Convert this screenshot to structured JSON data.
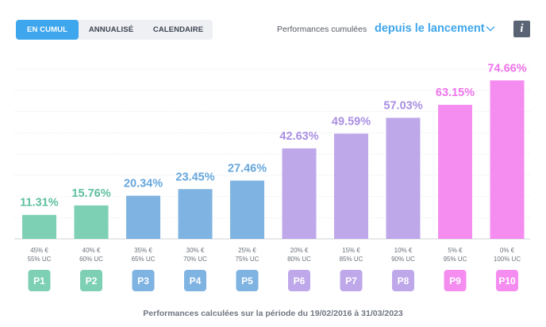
{
  "tabs": [
    {
      "label": "EN CUMUL",
      "active": true
    },
    {
      "label": "ANNUALISÉ",
      "active": false
    },
    {
      "label": "CALENDAIRE",
      "active": false
    }
  ],
  "selector": {
    "label": "Performances cumulées",
    "value": "depuis le lancement",
    "icon": "chevron-down-icon"
  },
  "info_button": {
    "label": "i",
    "icon": "info-icon"
  },
  "footer": "Performances calculées sur la période du 19/02/2016 à 31/03/2023",
  "chart_data": {
    "type": "bar",
    "categories": [
      "P1",
      "P2",
      "P3",
      "P4",
      "P5",
      "P6",
      "P7",
      "P8",
      "P9",
      "P10"
    ],
    "values": [
      11.31,
      15.76,
      20.34,
      23.45,
      27.46,
      42.63,
      49.59,
      57.03,
      63.15,
      74.66
    ],
    "value_labels": [
      "11.31%",
      "15.76%",
      "20.34%",
      "23.45%",
      "27.46%",
      "42.63%",
      "49.59%",
      "57.03%",
      "63.15%",
      "74.66%"
    ],
    "allocations": [
      [
        "45% €",
        "55% UC"
      ],
      [
        "40% €",
        "60% UC"
      ],
      [
        "35% €",
        "65% UC"
      ],
      [
        "30% €",
        "70% UC"
      ],
      [
        "25% €",
        "75% UC"
      ],
      [
        "20% €",
        "80% UC"
      ],
      [
        "15% €",
        "85% UC"
      ],
      [
        "10% €",
        "90% UC"
      ],
      [
        "5% €",
        "95% UC"
      ],
      [
        "0% €",
        "100% UC"
      ]
    ],
    "colors": {
      "bar": [
        "#7dd0b3",
        "#7dd0b3",
        "#7fb3e2",
        "#7fb3e2",
        "#7fb3e2",
        "#bea8ea",
        "#bea8ea",
        "#bea8ea",
        "#f58df0",
        "#f58df0"
      ],
      "label": [
        "#5ec09d",
        "#5ec09d",
        "#66a6dc",
        "#66a6dc",
        "#66a6dc",
        "#a98ee3",
        "#a98ee3",
        "#a98ee3",
        "#ef73ec",
        "#ef73ec"
      ],
      "pill": [
        "#7dd0b3",
        "#7dd0b3",
        "#7fb3e2",
        "#7fb3e2",
        "#7fb3e2",
        "#bea8ea",
        "#bea8ea",
        "#bea8ea",
        "#f58df0",
        "#f58df0"
      ]
    },
    "ylim": [
      0,
      80
    ],
    "grid": true,
    "xlabel": "",
    "ylabel": ""
  }
}
